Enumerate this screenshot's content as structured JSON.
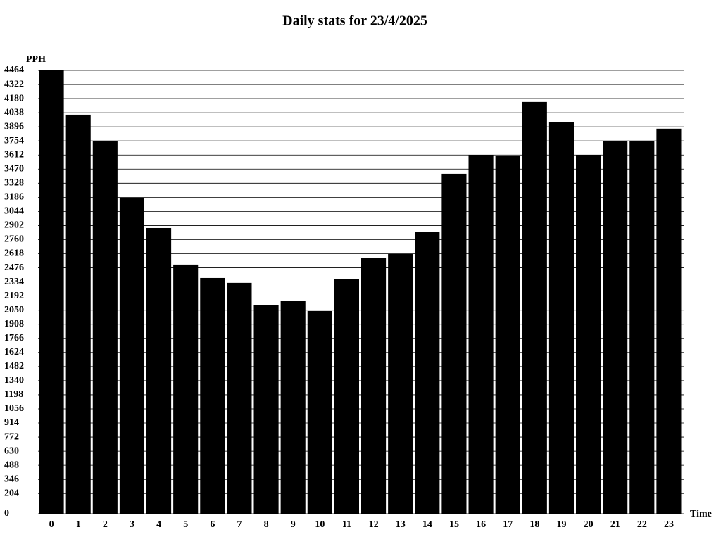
{
  "chart_data": {
    "type": "bar",
    "title": "Daily stats for 23/4/2025",
    "y_label": "PPH",
    "x_label": "Time",
    "categories": [
      "0",
      "1",
      "2",
      "3",
      "4",
      "5",
      "6",
      "7",
      "8",
      "9",
      "10",
      "11",
      "12",
      "13",
      "14",
      "15",
      "16",
      "17",
      "18",
      "19",
      "20",
      "21",
      "22",
      "23"
    ],
    "values": [
      4464,
      4018,
      3754,
      3182,
      2877,
      2509,
      2374,
      2325,
      2098,
      2147,
      2041,
      2360,
      2573,
      2615,
      2835,
      3423,
      3612,
      3607,
      4146,
      3940,
      3612,
      3754,
      3754,
      3877
    ],
    "color": "#000000",
    "ylim": [
      0,
      4464
    ],
    "yticks": [
      0,
      204,
      346,
      488,
      630,
      772,
      914,
      1056,
      1198,
      1340,
      1482,
      1624,
      1766,
      1908,
      2050,
      2192,
      2334,
      2476,
      2618,
      2760,
      2902,
      3044,
      3186,
      3328,
      3470,
      3612,
      3754,
      3896,
      4038,
      4180,
      4322,
      4464
    ],
    "grid": true
  }
}
